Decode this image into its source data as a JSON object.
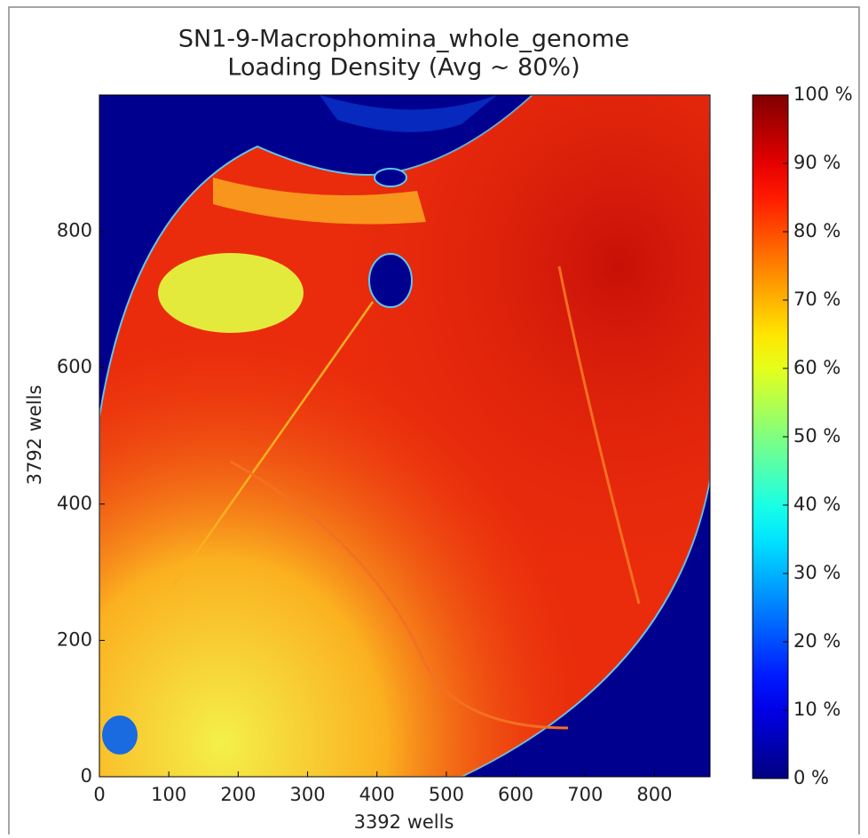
{
  "chart_data": {
    "type": "heatmap",
    "title": [
      "SN1-9-Macrophomina_whole_genome",
      "Loading Density (Avg ~ 80%)"
    ],
    "xlabel": "3392 wells",
    "ylabel": "3792 wells",
    "xlim": [
      0,
      880
    ],
    "ylim": [
      0,
      1000
    ],
    "xticks": [
      0,
      100,
      200,
      300,
      400,
      500,
      600,
      700,
      800
    ],
    "yticks": [
      0,
      200,
      400,
      600,
      800
    ],
    "colorbar": {
      "colormap": "jet",
      "lim": [
        0,
        100
      ],
      "ticks": [
        {
          "value": 0,
          "label": "0 %"
        },
        {
          "value": 10,
          "label": "10 %"
        },
        {
          "value": 20,
          "label": "20 %"
        },
        {
          "value": 30,
          "label": "30 %"
        },
        {
          "value": 40,
          "label": "40 %"
        },
        {
          "value": 50,
          "label": "50 %"
        },
        {
          "value": 60,
          "label": "60 %"
        },
        {
          "value": 70,
          "label": "70 %"
        },
        {
          "value": 80,
          "label": "80 %"
        },
        {
          "value": 90,
          "label": "90 %"
        },
        {
          "value": 100,
          "label": "100 %"
        }
      ]
    }
  }
}
